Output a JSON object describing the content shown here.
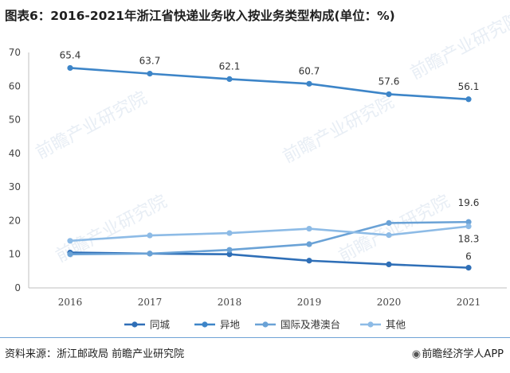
{
  "title": "图表6：2016-2021年浙江省快递业务收入按业务类型构成(单位：%)",
  "source": "资料来源：浙江邮政局 前瞻产业研究院",
  "brand": "前瞻经济学人APP",
  "watermark": "前瞻产业研究院",
  "colors": {
    "同城": "#2f6fb7",
    "异地": "#3d85c8",
    "国际及港澳台": "#6aa2d6",
    "其他": "#8dbbe6"
  },
  "chart_data": {
    "type": "line",
    "title": "图表6：2016-2021年浙江省快递业务收入按业务类型构成(单位：%)",
    "x": [
      "2016",
      "2017",
      "2018",
      "2019",
      "2020",
      "2021"
    ],
    "ylim": [
      0,
      70
    ],
    "yticks": [
      0,
      10,
      20,
      30,
      40,
      50,
      60,
      70
    ],
    "legend_position": "bottom",
    "grid": false,
    "series": [
      {
        "name": "同城",
        "values": [
          10.5,
          10.2,
          10.0,
          8.1,
          7.0,
          6.0
        ],
        "labels": [
          "",
          "",
          "",
          "",
          "",
          "6"
        ]
      },
      {
        "name": "异地",
        "values": [
          65.4,
          63.7,
          62.1,
          60.7,
          57.6,
          56.1
        ],
        "labels": [
          "65.4",
          "63.7",
          "62.1",
          "60.7",
          "57.6",
          "56.1"
        ]
      },
      {
        "name": "国际及港澳台",
        "values": [
          10.0,
          10.2,
          11.3,
          13.0,
          19.3,
          19.6
        ],
        "labels": [
          "",
          "",
          "",
          "",
          "",
          "19.6"
        ]
      },
      {
        "name": "其他",
        "values": [
          14.0,
          15.6,
          16.3,
          17.6,
          15.7,
          18.3
        ],
        "labels": [
          "",
          "",
          "",
          "",
          "",
          "18.3"
        ]
      }
    ]
  }
}
